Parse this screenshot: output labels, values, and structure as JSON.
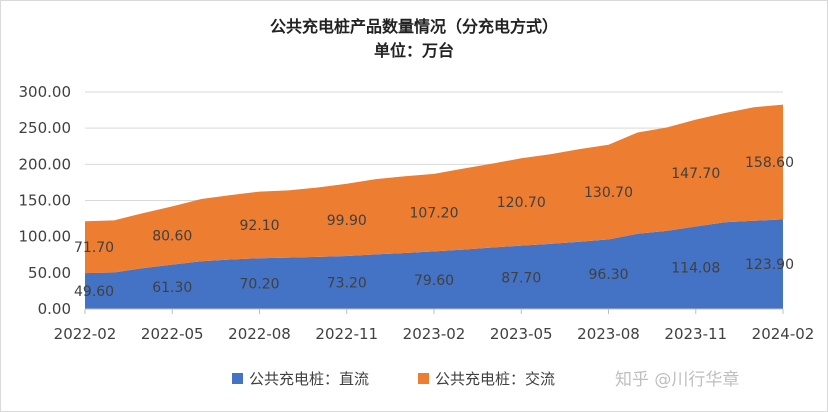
{
  "chart_data": {
    "type": "area",
    "stacked": true,
    "title": "公共充电桩产品数量情况（分充电方式）",
    "subtitle": "单位：万台",
    "ylim": [
      0,
      300
    ],
    "yticks": [
      "0.00",
      "50.00",
      "100.00",
      "150.00",
      "200.00",
      "250.00",
      "300.00"
    ],
    "xticks": [
      "2022-02",
      "2022-05",
      "2022-08",
      "2022-11",
      "2023-02",
      "2023-05",
      "2023-08",
      "2023-11",
      "2024-02"
    ],
    "x": [
      "2022-02",
      "2022-03",
      "2022-04",
      "2022-05",
      "2022-06",
      "2022-07",
      "2022-08",
      "2022-09",
      "2022-10",
      "2022-11",
      "2022-12",
      "2023-01",
      "2023-02",
      "2023-03",
      "2023-04",
      "2023-05",
      "2023-06",
      "2023-07",
      "2023-08",
      "2023-09",
      "2023-10",
      "2023-11",
      "2023-12",
      "2024-01",
      "2024-02"
    ],
    "series": [
      {
        "name": "公共充电桩：直流",
        "color": "#4472c4",
        "values": [
          49.6,
          50.5,
          56.5,
          61.3,
          66.0,
          68.5,
          70.2,
          71.0,
          72.0,
          73.2,
          75.5,
          77.5,
          79.6,
          82.0,
          85.0,
          87.7,
          90.0,
          93.0,
          96.3,
          104.0,
          108.0,
          114.08,
          120.0,
          122.0,
          123.9
        ]
      },
      {
        "name": "公共充电桩：交流",
        "color": "#ed7d31",
        "values": [
          71.7,
          72.0,
          76.0,
          80.6,
          86.0,
          89.0,
          92.1,
          93.0,
          96.0,
          99.9,
          104.0,
          106.0,
          107.2,
          112.0,
          116.0,
          120.7,
          124.0,
          128.0,
          130.7,
          140.0,
          143.0,
          147.7,
          151.0,
          157.0,
          158.6
        ]
      }
    ],
    "data_labels": [
      {
        "series": 0,
        "index": 0,
        "text": "49.60"
      },
      {
        "series": 0,
        "index": 3,
        "text": "61.30"
      },
      {
        "series": 0,
        "index": 6,
        "text": "70.20"
      },
      {
        "series": 0,
        "index": 9,
        "text": "73.20"
      },
      {
        "series": 0,
        "index": 12,
        "text": "79.60"
      },
      {
        "series": 0,
        "index": 15,
        "text": "87.70"
      },
      {
        "series": 0,
        "index": 18,
        "text": "96.30"
      },
      {
        "series": 0,
        "index": 21,
        "text": "114.08"
      },
      {
        "series": 0,
        "index": 24,
        "text": "123.90"
      },
      {
        "series": 1,
        "index": 0,
        "text": "71.70"
      },
      {
        "series": 1,
        "index": 3,
        "text": "80.60"
      },
      {
        "series": 1,
        "index": 6,
        "text": "92.10"
      },
      {
        "series": 1,
        "index": 9,
        "text": "99.90"
      },
      {
        "series": 1,
        "index": 12,
        "text": "107.20"
      },
      {
        "series": 1,
        "index": 15,
        "text": "120.70"
      },
      {
        "series": 1,
        "index": 18,
        "text": "130.70"
      },
      {
        "series": 1,
        "index": 21,
        "text": "147.70"
      },
      {
        "series": 1,
        "index": 24,
        "text": "158.60"
      }
    ],
    "grid": true,
    "legend": "bottom"
  },
  "watermark": "知乎 @川行华章"
}
